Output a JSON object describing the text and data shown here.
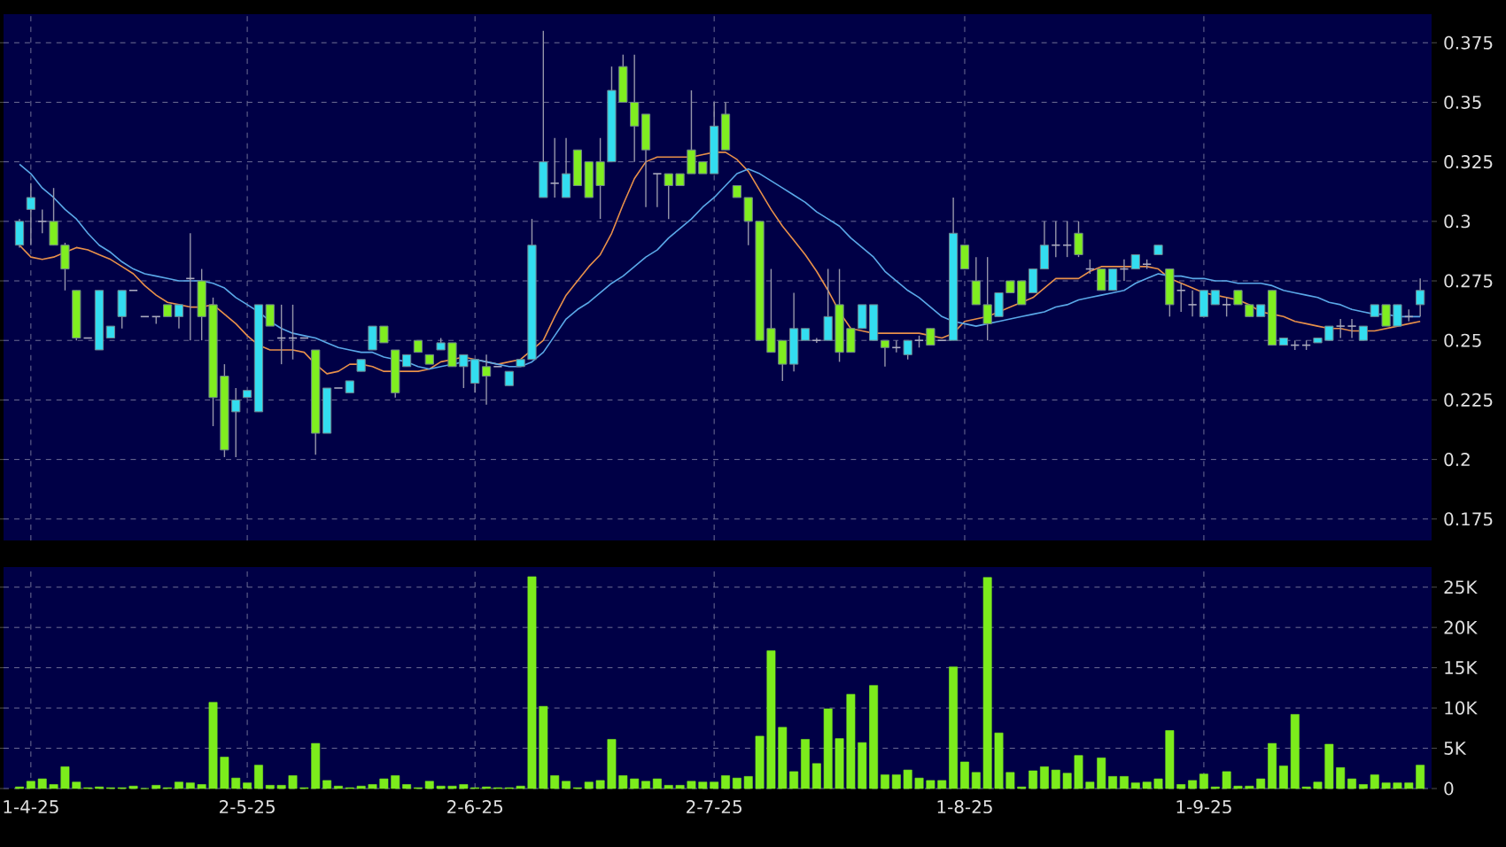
{
  "chart_data": [
    {
      "type": "candlestick",
      "categories": [
        null,
        null,
        null,
        null,
        null,
        null,
        null,
        null,
        null,
        null,
        null,
        null,
        null,
        null,
        null,
        null,
        null,
        null,
        null,
        null,
        null,
        null,
        null,
        null,
        null,
        null,
        null,
        null,
        null,
        null,
        null,
        null,
        null,
        null,
        null,
        null,
        null,
        null,
        null,
        null,
        null,
        null,
        null,
        null,
        null,
        null,
        null,
        null,
        null,
        null,
        null,
        null,
        null,
        null,
        null,
        null,
        null,
        null,
        null,
        null,
        null,
        null,
        null,
        null,
        null,
        null,
        null,
        null,
        null,
        null,
        null,
        null,
        null,
        null,
        null,
        null,
        null,
        null,
        null,
        null,
        null,
        null,
        null,
        null,
        null,
        null,
        null,
        null,
        null,
        null,
        null,
        null,
        null,
        null,
        null,
        null,
        null,
        null,
        null,
        null,
        null,
        null,
        null,
        null,
        null,
        null,
        null,
        null,
        null,
        null,
        null,
        null,
        null,
        null,
        null,
        null,
        null,
        null,
        null,
        null,
        null,
        null,
        null,
        null
      ],
      "ohlc": [
        [
          0.29,
          0.301,
          0.289,
          0.3
        ],
        [
          0.305,
          0.316,
          0.29,
          0.31
        ],
        [
          0.3,
          0.305,
          0.295,
          0.3
        ],
        [
          0.3,
          0.314,
          0.29,
          0.29
        ],
        [
          0.29,
          0.291,
          0.271,
          0.28
        ],
        [
          0.271,
          0.271,
          0.25,
          0.251
        ],
        [
          0.251,
          0.251,
          0.251,
          0.251
        ],
        [
          0.246,
          0.271,
          0.246,
          0.271
        ],
        [
          0.251,
          0.256,
          0.251,
          0.256
        ],
        [
          0.26,
          0.271,
          0.255,
          0.271
        ],
        [
          0.271,
          0.271,
          0.271,
          0.271
        ],
        [
          0.26,
          0.26,
          0.26,
          0.26
        ],
        [
          0.26,
          0.26,
          0.257,
          0.26
        ],
        [
          0.265,
          0.265,
          0.26,
          0.26
        ],
        [
          0.26,
          0.265,
          0.255,
          0.265
        ],
        [
          0.276,
          0.295,
          0.25,
          0.276
        ],
        [
          0.275,
          0.28,
          0.25,
          0.26
        ],
        [
          0.265,
          0.268,
          0.214,
          0.226
        ],
        [
          0.235,
          0.24,
          0.201,
          0.204
        ],
        [
          0.22,
          0.23,
          0.201,
          0.225
        ],
        [
          0.226,
          0.229,
          0.226,
          0.229
        ],
        [
          0.22,
          0.265,
          0.22,
          0.265
        ],
        [
          0.265,
          0.265,
          0.256,
          0.256
        ],
        [
          0.251,
          0.265,
          0.24,
          0.251
        ],
        [
          0.251,
          0.265,
          0.242,
          0.251
        ],
        [
          0.251,
          0.251,
          0.251,
          0.251
        ],
        [
          0.246,
          0.246,
          0.202,
          0.211
        ],
        [
          0.211,
          0.23,
          0.211,
          0.23
        ],
        [
          0.23,
          0.23,
          0.23,
          0.23
        ],
        [
          0.228,
          0.233,
          0.228,
          0.233
        ],
        [
          0.237,
          0.242,
          0.237,
          0.242
        ],
        [
          0.246,
          0.256,
          0.246,
          0.256
        ],
        [
          0.256,
          0.256,
          0.249,
          0.249
        ],
        [
          0.246,
          0.246,
          0.226,
          0.228
        ],
        [
          0.239,
          0.244,
          0.239,
          0.244
        ],
        [
          0.25,
          0.25,
          0.245,
          0.245
        ],
        [
          0.244,
          0.244,
          0.24,
          0.24
        ],
        [
          0.246,
          0.251,
          0.246,
          0.249
        ],
        [
          0.249,
          0.249,
          0.239,
          0.239
        ],
        [
          0.239,
          0.244,
          0.23,
          0.244
        ],
        [
          0.232,
          0.242,
          0.228,
          0.242
        ],
        [
          0.239,
          0.244,
          0.223,
          0.235
        ],
        [
          0.239,
          0.239,
          0.239,
          0.239
        ],
        [
          0.231,
          0.237,
          0.231,
          0.237
        ],
        [
          0.239,
          0.242,
          0.239,
          0.242
        ],
        [
          0.242,
          0.301,
          0.242,
          0.29
        ],
        [
          0.31,
          0.38,
          0.31,
          0.325
        ],
        [
          0.316,
          0.335,
          0.31,
          0.316
        ],
        [
          0.31,
          0.335,
          0.31,
          0.32
        ],
        [
          0.33,
          0.33,
          0.315,
          0.315
        ],
        [
          0.325,
          0.325,
          0.31,
          0.31
        ],
        [
          0.325,
          0.335,
          0.301,
          0.315
        ],
        [
          0.325,
          0.365,
          0.325,
          0.355
        ],
        [
          0.365,
          0.37,
          0.35,
          0.35
        ],
        [
          0.35,
          0.37,
          0.325,
          0.34
        ],
        [
          0.345,
          0.345,
          0.306,
          0.33
        ],
        [
          0.32,
          0.32,
          0.306,
          0.32
        ],
        [
          0.32,
          0.32,
          0.301,
          0.315
        ],
        [
          0.32,
          0.32,
          0.315,
          0.315
        ],
        [
          0.33,
          0.355,
          0.32,
          0.32
        ],
        [
          0.325,
          0.325,
          0.32,
          0.32
        ],
        [
          0.32,
          0.35,
          0.32,
          0.34
        ],
        [
          0.345,
          0.35,
          0.33,
          0.33
        ],
        [
          0.315,
          0.315,
          0.31,
          0.31
        ],
        [
          0.31,
          0.31,
          0.29,
          0.3
        ],
        [
          0.3,
          0.3,
          0.25,
          0.25
        ],
        [
          0.255,
          0.28,
          0.245,
          0.245
        ],
        [
          0.25,
          0.25,
          0.233,
          0.24
        ],
        [
          0.24,
          0.27,
          0.237,
          0.255
        ],
        [
          0.25,
          0.255,
          0.25,
          0.255
        ],
        [
          0.25,
          0.251,
          0.249,
          0.25
        ],
        [
          0.25,
          0.28,
          0.25,
          0.26
        ],
        [
          0.265,
          0.28,
          0.241,
          0.245
        ],
        [
          0.255,
          0.255,
          0.245,
          0.245
        ],
        [
          0.255,
          0.265,
          0.255,
          0.265
        ],
        [
          0.25,
          0.265,
          0.25,
          0.265
        ],
        [
          0.25,
          0.25,
          0.239,
          0.247
        ],
        [
          0.247,
          0.25,
          0.245,
          0.247
        ],
        [
          0.244,
          0.25,
          0.242,
          0.25
        ],
        [
          0.25,
          0.252,
          0.247,
          0.25
        ],
        [
          0.255,
          0.255,
          0.248,
          0.248
        ],
        [
          0.25,
          0.25,
          0.25,
          0.25
        ],
        [
          0.25,
          0.31,
          0.25,
          0.295
        ],
        [
          0.29,
          0.29,
          0.28,
          0.28
        ],
        [
          0.275,
          0.285,
          0.265,
          0.265
        ],
        [
          0.265,
          0.285,
          0.25,
          0.257
        ],
        [
          0.26,
          0.27,
          0.26,
          0.27
        ],
        [
          0.275,
          0.275,
          0.27,
          0.27
        ],
        [
          0.275,
          0.275,
          0.265,
          0.265
        ],
        [
          0.27,
          0.28,
          0.27,
          0.28
        ],
        [
          0.28,
          0.3,
          0.28,
          0.29
        ],
        [
          0.29,
          0.3,
          0.285,
          0.29
        ],
        [
          0.29,
          0.3,
          0.285,
          0.29
        ],
        [
          0.295,
          0.3,
          0.285,
          0.286
        ],
        [
          0.28,
          0.284,
          0.278,
          0.28
        ],
        [
          0.28,
          0.28,
          0.271,
          0.271
        ],
        [
          0.271,
          0.28,
          0.271,
          0.28
        ],
        [
          0.28,
          0.284,
          0.275,
          0.28
        ],
        [
          0.28,
          0.286,
          0.28,
          0.286
        ],
        [
          0.282,
          0.284,
          0.28,
          0.282
        ],
        [
          0.286,
          0.29,
          0.286,
          0.29
        ],
        [
          0.28,
          0.28,
          0.26,
          0.265
        ],
        [
          0.271,
          0.274,
          0.262,
          0.271
        ],
        [
          0.265,
          0.271,
          0.26,
          0.265
        ],
        [
          0.26,
          0.271,
          0.26,
          0.271
        ],
        [
          0.265,
          0.271,
          0.265,
          0.271
        ],
        [
          0.265,
          0.268,
          0.26,
          0.265
        ],
        [
          0.271,
          0.271,
          0.265,
          0.265
        ],
        [
          0.265,
          0.265,
          0.26,
          0.26
        ],
        [
          0.26,
          0.265,
          0.26,
          0.265
        ],
        [
          0.271,
          0.271,
          0.248,
          0.248
        ],
        [
          0.248,
          0.251,
          0.248,
          0.251
        ],
        [
          0.248,
          0.25,
          0.246,
          0.248
        ],
        [
          0.248,
          0.25,
          0.246,
          0.248
        ],
        [
          0.249,
          0.251,
          0.249,
          0.251
        ],
        [
          0.25,
          0.256,
          0.25,
          0.256
        ],
        [
          0.256,
          0.259,
          0.251,
          0.256
        ],
        [
          0.256,
          0.259,
          0.251,
          0.256
        ],
        [
          0.25,
          0.256,
          0.25,
          0.256
        ],
        [
          0.26,
          0.265,
          0.26,
          0.265
        ],
        [
          0.265,
          0.265,
          0.256,
          0.256
        ],
        [
          0.256,
          0.265,
          0.256,
          0.265
        ],
        [
          0.26,
          0.263,
          0.258,
          0.26
        ],
        [
          0.265,
          0.276,
          0.26,
          0.271
        ]
      ],
      "series": [
        {
          "type": "line",
          "color": "#e8904a",
          "values": [
            0.29,
            0.285,
            0.284,
            0.285,
            0.287,
            0.289,
            0.288,
            0.286,
            0.284,
            0.281,
            0.278,
            0.273,
            0.269,
            0.266,
            0.265,
            0.264,
            0.264,
            0.265,
            0.261,
            0.257,
            0.252,
            0.248,
            0.246,
            0.246,
            0.246,
            0.245,
            0.24,
            0.236,
            0.237,
            0.24,
            0.24,
            0.239,
            0.237,
            0.237,
            0.237,
            0.237,
            0.238,
            0.241,
            0.242,
            0.243,
            0.242,
            0.241,
            0.24,
            0.241,
            0.242,
            0.246,
            0.25,
            0.26,
            0.269,
            0.275,
            0.281,
            0.286,
            0.295,
            0.307,
            0.318,
            0.325,
            0.327,
            0.327,
            0.327,
            0.327,
            0.328,
            0.329,
            0.329,
            0.326,
            0.321,
            0.313,
            0.305,
            0.298,
            0.292,
            0.286,
            0.279,
            0.271,
            0.262,
            0.255,
            0.254,
            0.253,
            0.253,
            0.253,
            0.253,
            0.253,
            0.252,
            0.251,
            0.253,
            0.258,
            0.259,
            0.26,
            0.262,
            0.264,
            0.266,
            0.268,
            0.272,
            0.276,
            0.276,
            0.276,
            0.279,
            0.281,
            0.281,
            0.281,
            0.281,
            0.281,
            0.28,
            0.276,
            0.274,
            0.272,
            0.27,
            0.269,
            0.268,
            0.267,
            0.265,
            0.262,
            0.261,
            0.26,
            0.258,
            0.257,
            0.256,
            0.255,
            0.255,
            0.254,
            0.254,
            0.254,
            0.255,
            0.256,
            0.257,
            0.258
          ]
        },
        {
          "type": "line",
          "color": "#5aa8e8",
          "values": [
            0.324,
            0.32,
            0.314,
            0.31,
            0.305,
            0.301,
            0.295,
            0.29,
            0.287,
            0.283,
            0.28,
            0.278,
            0.277,
            0.276,
            0.275,
            0.275,
            0.275,
            0.274,
            0.272,
            0.268,
            0.265,
            0.262,
            0.258,
            0.255,
            0.253,
            0.252,
            0.251,
            0.249,
            0.247,
            0.246,
            0.245,
            0.245,
            0.243,
            0.242,
            0.241,
            0.239,
            0.238,
            0.239,
            0.24,
            0.241,
            0.242,
            0.241,
            0.24,
            0.239,
            0.239,
            0.241,
            0.245,
            0.252,
            0.259,
            0.263,
            0.266,
            0.27,
            0.274,
            0.277,
            0.281,
            0.285,
            0.288,
            0.293,
            0.297,
            0.301,
            0.306,
            0.31,
            0.315,
            0.32,
            0.322,
            0.32,
            0.317,
            0.314,
            0.311,
            0.308,
            0.304,
            0.301,
            0.298,
            0.293,
            0.289,
            0.285,
            0.279,
            0.275,
            0.271,
            0.268,
            0.264,
            0.26,
            0.258,
            0.257,
            0.256,
            0.257,
            0.258,
            0.259,
            0.26,
            0.261,
            0.262,
            0.264,
            0.265,
            0.267,
            0.268,
            0.269,
            0.27,
            0.271,
            0.274,
            0.276,
            0.278,
            0.277,
            0.277,
            0.276,
            0.276,
            0.275,
            0.275,
            0.274,
            0.274,
            0.274,
            0.273,
            0.271,
            0.27,
            0.269,
            0.268,
            0.266,
            0.265,
            0.263,
            0.262,
            0.261,
            0.261,
            0.26,
            0.26,
            0.26
          ]
        }
      ],
      "ylim": [
        0.166,
        0.387
      ],
      "yticks": [
        0.175,
        0.2,
        0.225,
        0.25,
        0.275,
        0.3,
        0.325,
        0.35,
        0.375
      ],
      "grid": true,
      "tick_labels": "y"
    },
    {
      "type": "bar",
      "categories": [
        null,
        "1-4-25",
        null,
        null,
        null,
        null,
        null,
        null,
        null,
        null,
        null,
        null,
        null,
        null,
        null,
        null,
        null,
        null,
        null,
        null,
        "2-5-25",
        null,
        null,
        null,
        null,
        null,
        null,
        null,
        null,
        null,
        null,
        null,
        null,
        null,
        null,
        null,
        null,
        null,
        null,
        null,
        "2-6-25",
        null,
        null,
        null,
        null,
        null,
        null,
        null,
        null,
        null,
        null,
        null,
        null,
        null,
        null,
        null,
        null,
        null,
        null,
        null,
        null,
        "2-7-25",
        null,
        null,
        null,
        null,
        null,
        null,
        null,
        null,
        null,
        null,
        null,
        null,
        null,
        null,
        null,
        null,
        null,
        null,
        null,
        null,
        null,
        "1-8-25",
        null,
        null,
        null,
        null,
        null,
        null,
        null,
        null,
        null,
        null,
        null,
        null,
        null,
        null,
        null,
        null,
        null,
        null,
        null,
        null,
        "1-9-25",
        null,
        null,
        null,
        null,
        null,
        null,
        null,
        null,
        null,
        null,
        null,
        null,
        null,
        null,
        null,
        null,
        null,
        null,
        null
      ],
      "values": [
        200,
        900,
        1200,
        500,
        2700,
        800,
        100,
        200,
        100,
        100,
        300,
        0,
        400,
        100,
        800,
        700,
        500,
        10700,
        3900,
        1300,
        700,
        2900,
        400,
        400,
        1600,
        100,
        5600,
        1000,
        300,
        100,
        300,
        500,
        1200,
        1600,
        500,
        100,
        900,
        300,
        300,
        500,
        100,
        200,
        100,
        100,
        300,
        26300,
        10200,
        1600,
        900,
        100,
        800,
        1000,
        6100,
        1600,
        1200,
        900,
        1200,
        400,
        400,
        900,
        800,
        800,
        1600,
        1300,
        1500,
        6500,
        17100,
        7600,
        2100,
        6100,
        3100,
        9900,
        6200,
        11700,
        5700,
        12800,
        1700,
        1700,
        2300,
        1300,
        1000,
        1000,
        15100,
        3300,
        2000,
        26200,
        6900,
        2000,
        200,
        2200,
        2700,
        2300,
        1900,
        4100,
        800,
        3800,
        1500,
        1500,
        700,
        800,
        1200,
        7200,
        500,
        1000,
        1800,
        200,
        2100,
        300,
        300,
        1200,
        5600,
        2800,
        9200,
        200,
        800,
        5500,
        2600,
        1200,
        500,
        1700,
        700,
        700,
        700,
        2900
      ],
      "color": "#7cec1c",
      "ylim": [
        0,
        27500
      ],
      "yticks": [
        0,
        {
          "value": 5000,
          "label": "5K"
        },
        {
          "value": 10000,
          "label": "10K"
        },
        {
          "value": 15000,
          "label": "15K"
        },
        {
          "value": 20000,
          "label": "20K"
        },
        {
          "value": 25000,
          "label": "25K"
        }
      ],
      "grid": true
    }
  ]
}
